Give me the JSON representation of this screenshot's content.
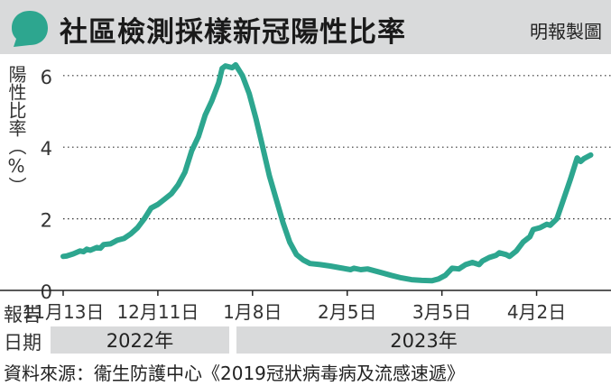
{
  "header": {
    "title": "社區檢測採樣新冠陽性比率",
    "source_tag": "明報製圖",
    "icon": "speech-bubble-icon"
  },
  "labels": {
    "row1": "報告",
    "row2": "日期",
    "footer": "資料來源：衞生防護中心《2019冠狀病毒病及流感速遞》"
  },
  "years": [
    "2022年",
    "2023年"
  ],
  "colors": {
    "line": "#2da68f",
    "band": "#d9dadb",
    "grid": "#333333"
  },
  "chart_data": {
    "type": "line",
    "ylabel": "陽性比率（%）",
    "ylim": [
      0,
      6.6
    ],
    "yticks": [
      0,
      2,
      4,
      6
    ],
    "xticks": [
      {
        "label": "11月13日",
        "x": 0
      },
      {
        "label": "12月11日",
        "x": 28
      },
      {
        "label": "1月8日",
        "x": 56
      },
      {
        "label": "2月5日",
        "x": 84
      },
      {
        "label": "3月5日",
        "x": 112
      },
      {
        "label": "4月2日",
        "x": 140
      }
    ],
    "xlim": [
      -8,
      162
    ],
    "grid": true,
    "series": [
      {
        "points": [
          [
            0,
            0.95
          ],
          [
            1,
            0.96
          ],
          [
            3,
            1.02
          ],
          [
            5,
            1.1
          ],
          [
            6,
            1.08
          ],
          [
            7,
            1.15
          ],
          [
            8,
            1.12
          ],
          [
            10,
            1.2
          ],
          [
            11,
            1.18
          ],
          [
            12,
            1.28
          ],
          [
            14,
            1.3
          ],
          [
            16,
            1.4
          ],
          [
            18,
            1.45
          ],
          [
            20,
            1.58
          ],
          [
            22,
            1.75
          ],
          [
            24,
            2.0
          ],
          [
            26,
            2.3
          ],
          [
            28,
            2.4
          ],
          [
            30,
            2.55
          ],
          [
            32,
            2.7
          ],
          [
            34,
            2.95
          ],
          [
            36,
            3.3
          ],
          [
            38,
            3.9
          ],
          [
            40,
            4.3
          ],
          [
            42,
            4.9
          ],
          [
            44,
            5.3
          ],
          [
            46,
            5.8
          ],
          [
            47,
            6.2
          ],
          [
            48,
            6.27
          ],
          [
            50,
            6.22
          ],
          [
            51,
            6.3
          ],
          [
            53,
            6.0
          ],
          [
            55,
            5.5
          ],
          [
            57,
            4.8
          ],
          [
            59,
            4.0
          ],
          [
            61,
            3.2
          ],
          [
            63,
            2.55
          ],
          [
            65,
            1.9
          ],
          [
            67,
            1.35
          ],
          [
            69,
            1.0
          ],
          [
            71,
            0.85
          ],
          [
            73,
            0.75
          ],
          [
            76,
            0.72
          ],
          [
            79,
            0.68
          ],
          [
            82,
            0.63
          ],
          [
            85,
            0.58
          ],
          [
            86,
            0.62
          ],
          [
            88,
            0.58
          ],
          [
            90,
            0.6
          ],
          [
            92,
            0.55
          ],
          [
            94,
            0.5
          ],
          [
            97,
            0.42
          ],
          [
            100,
            0.35
          ],
          [
            103,
            0.3
          ],
          [
            106,
            0.28
          ],
          [
            109,
            0.27
          ],
          [
            111,
            0.32
          ],
          [
            113,
            0.42
          ],
          [
            115,
            0.62
          ],
          [
            117,
            0.6
          ],
          [
            119,
            0.72
          ],
          [
            121,
            0.78
          ],
          [
            123,
            0.72
          ],
          [
            124,
            0.82
          ],
          [
            126,
            0.92
          ],
          [
            128,
            0.98
          ],
          [
            129,
            1.05
          ],
          [
            131,
            1.0
          ],
          [
            132,
            0.95
          ],
          [
            134,
            1.1
          ],
          [
            136,
            1.35
          ],
          [
            138,
            1.5
          ],
          [
            139,
            1.7
          ],
          [
            141,
            1.75
          ],
          [
            143,
            1.85
          ],
          [
            144,
            1.82
          ],
          [
            146,
            2.0
          ],
          [
            148,
            2.55
          ],
          [
            150,
            3.1
          ],
          [
            152,
            3.7
          ],
          [
            153,
            3.6
          ],
          [
            154,
            3.68
          ],
          [
            156,
            3.78
          ]
        ]
      }
    ]
  }
}
